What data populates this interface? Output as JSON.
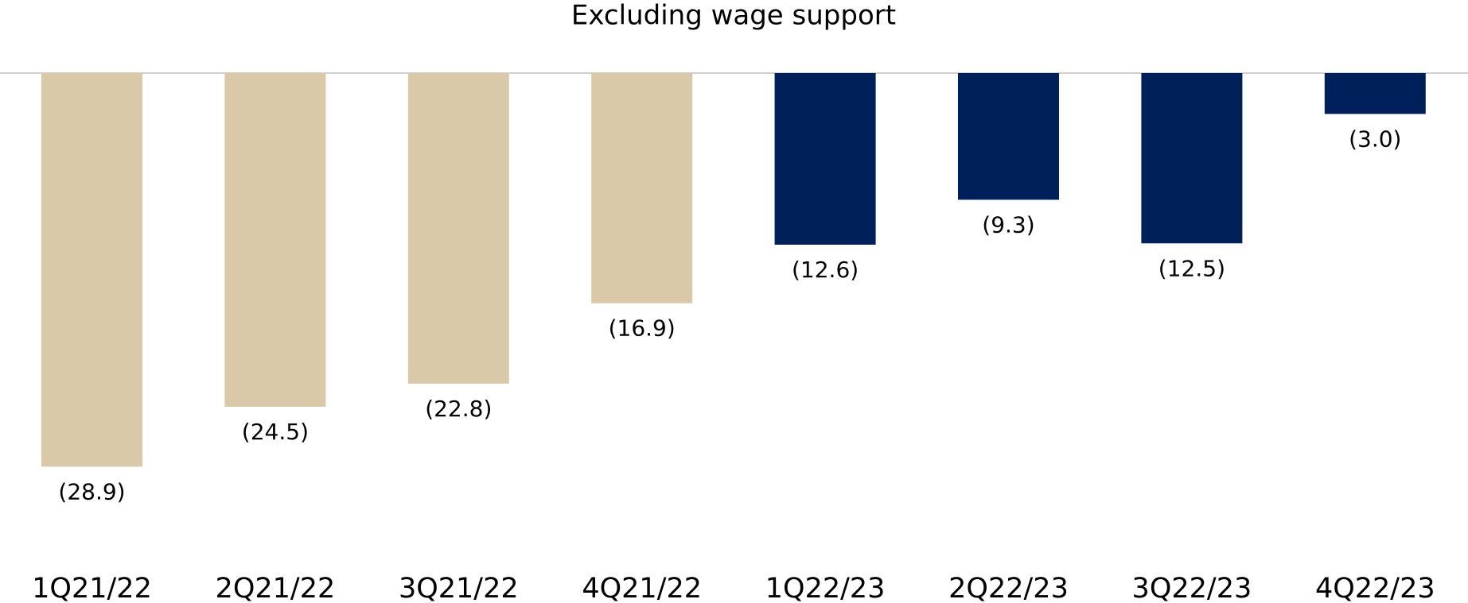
{
  "chart_data": {
    "type": "bar",
    "title": "Excluding wage support",
    "categories": [
      "1Q21/22",
      "2Q21/22",
      "3Q21/22",
      "4Q21/22",
      "1Q22/23",
      "2Q22/23",
      "3Q22/23",
      "4Q22/23"
    ],
    "values": [
      -28.9,
      -24.5,
      -22.8,
      -16.9,
      -12.6,
      -9.3,
      -12.5,
      -3.0
    ],
    "value_labels": [
      "(28.9)",
      "(24.5)",
      "(22.8)",
      "(16.9)",
      "(12.6)",
      "(9.3)",
      "(12.5)",
      "(3.0)"
    ],
    "colors": [
      "#d9c9a9",
      "#d9c9a9",
      "#d9c9a9",
      "#d9c9a9",
      "#00205b",
      "#00205b",
      "#00205b",
      "#00205b"
    ],
    "ylim": [
      -35,
      0
    ],
    "grid": false
  }
}
